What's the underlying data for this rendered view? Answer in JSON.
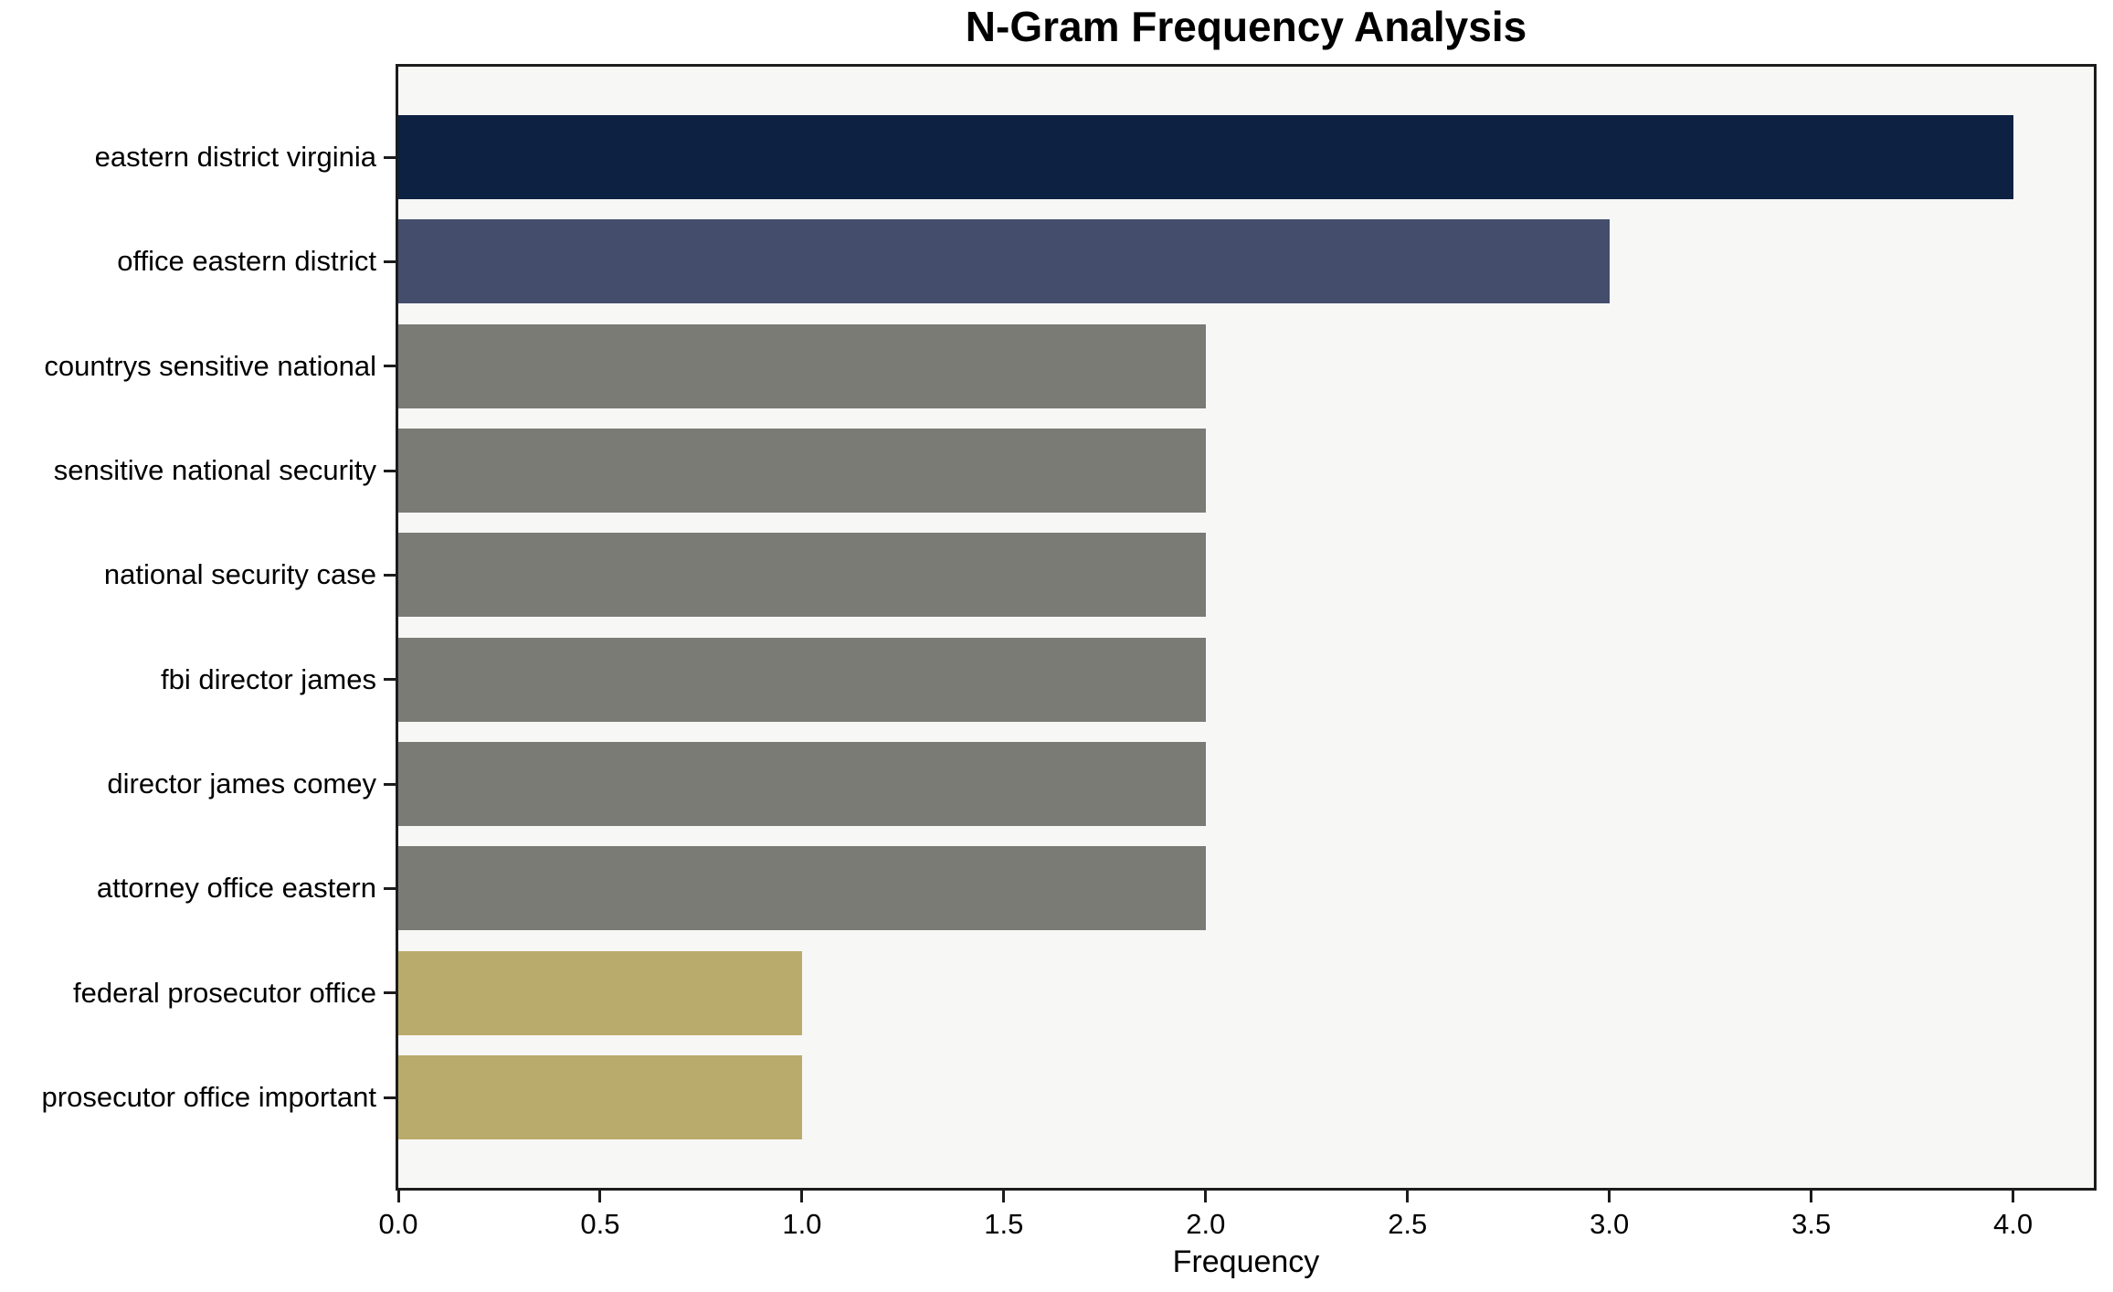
{
  "chart_data": {
    "type": "bar",
    "orientation": "horizontal",
    "title": "N-Gram Frequency Analysis",
    "xlabel": "Frequency",
    "ylabel": "",
    "categories": [
      "eastern district virginia",
      "office eastern district",
      "countrys sensitive national",
      "sensitive national security",
      "national security case",
      "fbi director james",
      "director james comey",
      "attorney office eastern",
      "federal prosecutor office",
      "prosecutor office important"
    ],
    "values": [
      4,
      3,
      2,
      2,
      2,
      2,
      2,
      2,
      1,
      1
    ],
    "bar_colors": [
      "#0d2143",
      "#444e6c",
      "#7b7b76",
      "#7b7b76",
      "#7b7b76",
      "#7b7b76",
      "#7b7b76",
      "#7b7b76",
      "#b9ab6b",
      "#b9ab6b"
    ],
    "xlim": [
      0,
      4.2
    ],
    "xticks": [
      0.0,
      0.5,
      1.0,
      1.5,
      2.0,
      2.5,
      3.0,
      3.5,
      4.0
    ],
    "xtick_labels": [
      "0.0",
      "0.5",
      "1.0",
      "1.5",
      "2.0",
      "2.5",
      "3.0",
      "3.5",
      "4.0"
    ],
    "grid": false,
    "legend": "none",
    "colors": {
      "figure_bg": "#ffffff",
      "plot_bg": "#f7f7f6",
      "spine": "#1c1c1c",
      "text": "#000000"
    }
  }
}
